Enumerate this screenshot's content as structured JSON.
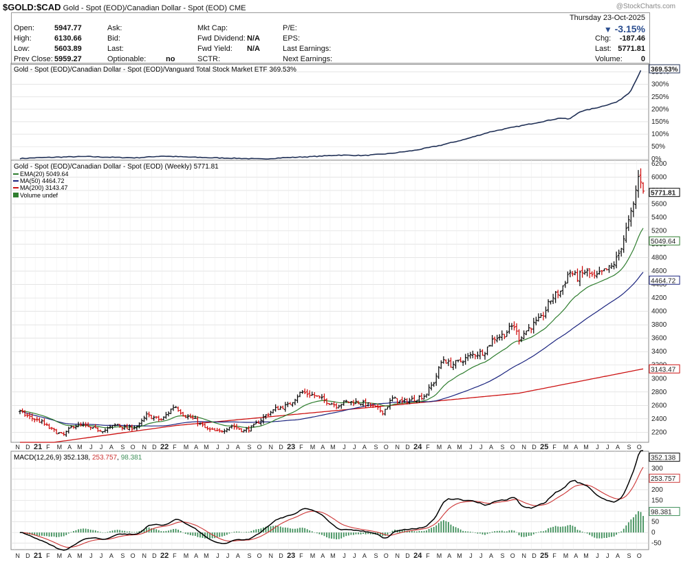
{
  "header": {
    "symbol": "$GOLD:$CAD",
    "name": "Gold - Spot (EOD)/Canadian Dollar - Spot (EOD)",
    "exchange": "CME",
    "credit": "@StockCharts.com"
  },
  "quote": {
    "date_line": "Thursday  23-Oct-2025",
    "pct_change": "-3.15%",
    "rows_left": [
      {
        "label": "Open:",
        "value": "5947.77"
      },
      {
        "label": "High:",
        "value": "6130.66"
      },
      {
        "label": "Low:",
        "value": "5603.89"
      },
      {
        "label": "Prev Close:",
        "value": "5959.27"
      }
    ],
    "rows_mid1": [
      {
        "label": "Ask:",
        "value": ""
      },
      {
        "label": "Bid:",
        "value": ""
      },
      {
        "label": "Last:",
        "value": ""
      },
      {
        "label": "Optionable:",
        "value": "no"
      }
    ],
    "rows_mid2": [
      {
        "label": "Mkt Cap:",
        "value": ""
      },
      {
        "label": "Fwd Dividend:",
        "value": "N/A"
      },
      {
        "label": "Fwd Yield:",
        "value": "N/A"
      },
      {
        "label": "SCTR:",
        "value": ""
      }
    ],
    "rows_mid3": [
      {
        "label": "P/E:"
      },
      {
        "label": "EPS:"
      },
      {
        "label": "Last Earnings:"
      },
      {
        "label": "Next Earnings:"
      }
    ],
    "rows_right": [
      {
        "label": "Chg:",
        "value": "-187.46"
      },
      {
        "label": "Last:",
        "value": "5771.81"
      },
      {
        "label": "Volume:",
        "value": "0"
      }
    ]
  },
  "colors": {
    "price_up": "#000000",
    "price_down": "#cc0000",
    "ema20": "#2e7d2e",
    "ma50": "#1a237e",
    "ma200": "#cc1111",
    "rel": "#1f2f55",
    "macd": "#000000",
    "signal": "#cc3333",
    "hist": "#3f8f5a",
    "grid": "#d4d4d4"
  },
  "chart_data": [
    {
      "type": "line",
      "legend": "Gold - Spot (EOD)/Canadian Dollar - Spot (EOD)/Vanguard Total Stock Market ETF 369.53%",
      "yticks": [
        "0%",
        "50%",
        "100%",
        "150%",
        "200%",
        "250%",
        "300%",
        "350%"
      ],
      "ylim": [
        -5,
        385
      ],
      "last_label": "369.53%",
      "x": [
        2020.88,
        2021.0,
        2021.2,
        2021.4,
        2021.6,
        2021.8,
        2022.0,
        2022.2,
        2022.4,
        2022.6,
        2022.8,
        2022.95,
        2023.2,
        2023.4,
        2023.6,
        2023.8,
        2024.0,
        2024.2,
        2024.4,
        2024.6,
        2024.8,
        2025.0,
        2025.15,
        2025.22,
        2025.3,
        2025.45,
        2025.6,
        2025.7,
        2025.78,
        2025.8
      ],
      "values": [
        2,
        5,
        8,
        10,
        7,
        5,
        12,
        8,
        5,
        3,
        0,
        5,
        10,
        16,
        14,
        22,
        35,
        55,
        80,
        110,
        130,
        150,
        165,
        160,
        190,
        208,
        230,
        270,
        352,
        369.53
      ]
    },
    {
      "type": "bar",
      "title": "Gold - Spot (EOD)/Canadian Dollar - Spot (EOD) (Weekly) 5771.81",
      "legend": [
        {
          "name": "EMA(20)",
          "value": "5049.64"
        },
        {
          "name": "MA(50)",
          "value": "4464.72"
        },
        {
          "name": "MA(200)",
          "value": "3143.47"
        },
        {
          "name": "Volume undef",
          "value": ""
        }
      ],
      "yticks": [
        "2200",
        "2400",
        "2600",
        "2800",
        "3000",
        "3200",
        "3400",
        "3600",
        "3800",
        "4000",
        "4200",
        "4400",
        "4600",
        "4800",
        "5000",
        "5200",
        "5400",
        "5600",
        "5800",
        "6000",
        "6200"
      ],
      "ylim": [
        2050,
        6250
      ],
      "value_labels": [
        "5771.81",
        "5049.64",
        "4464.72",
        "3143.47"
      ],
      "x_anchor": [
        2020.88,
        2020.95,
        2021.05,
        2021.12,
        2021.22,
        2021.3,
        2021.38,
        2021.45,
        2021.55,
        2021.65,
        2021.72,
        2021.82,
        2021.88,
        2022.0,
        2022.1,
        2022.18,
        2022.25,
        2022.35,
        2022.45,
        2022.55,
        2022.65,
        2022.72,
        2022.82,
        2022.9,
        2023.0,
        2023.1,
        2023.2,
        2023.28,
        2023.38,
        2023.45,
        2023.55,
        2023.65,
        2023.75,
        2023.82,
        2023.9,
        2024.0,
        2024.08,
        2024.15,
        2024.22,
        2024.28,
        2024.35,
        2024.45,
        2024.55,
        2024.62,
        2024.7,
        2024.78,
        2024.82,
        2024.9,
        2025.0,
        2025.08,
        2025.15,
        2025.22,
        2025.28,
        2025.35,
        2025.42,
        2025.5,
        2025.55,
        2025.6,
        2025.65,
        2025.7,
        2025.73,
        2025.76,
        2025.79,
        2025.81
      ],
      "close_anchor": [
        2500,
        2430,
        2350,
        2250,
        2150,
        2300,
        2300,
        2250,
        2230,
        2320,
        2250,
        2300,
        2450,
        2380,
        2600,
        2450,
        2400,
        2250,
        2200,
        2300,
        2220,
        2280,
        2450,
        2550,
        2600,
        2800,
        2750,
        2680,
        2600,
        2650,
        2650,
        2600,
        2500,
        2700,
        2650,
        2700,
        2750,
        2950,
        3300,
        3200,
        3250,
        3350,
        3400,
        3600,
        3650,
        3800,
        3600,
        3750,
        3900,
        4200,
        4300,
        4600,
        4500,
        4600,
        4500,
        4600,
        4650,
        4800,
        5100,
        5400,
        5600,
        6000,
        5960,
        5771.81
      ]
    },
    {
      "type": "line",
      "legend": "MACD(12,26,9) 352.138, 253.757, 98.381",
      "legend_parts": [
        "MACD(12,26,9) 352.138",
        "253.757",
        "98.381"
      ],
      "yticks": [
        "-50",
        "0",
        "50",
        "100",
        "150",
        "200",
        "250",
        "300"
      ],
      "ylim": [
        -80,
        380
      ],
      "last_labels": [
        "352.138",
        "253.757",
        "98.381"
      ]
    }
  ],
  "xaxis": {
    "labels": [
      {
        "t": 2020.84,
        "text": "N"
      },
      {
        "t": 2020.92,
        "text": "D"
      },
      {
        "t": 2021.0,
        "text": "21"
      },
      {
        "t": 2021.08,
        "text": "F"
      },
      {
        "t": 2021.17,
        "text": "M"
      },
      {
        "t": 2021.25,
        "text": "A"
      },
      {
        "t": 2021.33,
        "text": "M"
      },
      {
        "t": 2021.42,
        "text": "J"
      },
      {
        "t": 2021.5,
        "text": "J"
      },
      {
        "t": 2021.58,
        "text": "A"
      },
      {
        "t": 2021.67,
        "text": "S"
      },
      {
        "t": 2021.75,
        "text": "O"
      },
      {
        "t": 2021.84,
        "text": "N"
      },
      {
        "t": 2021.92,
        "text": "D"
      },
      {
        "t": 2022.0,
        "text": "22"
      },
      {
        "t": 2022.08,
        "text": "F"
      },
      {
        "t": 2022.17,
        "text": "M"
      },
      {
        "t": 2022.25,
        "text": "A"
      },
      {
        "t": 2022.33,
        "text": "M"
      },
      {
        "t": 2022.42,
        "text": "J"
      },
      {
        "t": 2022.5,
        "text": "J"
      },
      {
        "t": 2022.58,
        "text": "A"
      },
      {
        "t": 2022.67,
        "text": "S"
      },
      {
        "t": 2022.75,
        "text": "O"
      },
      {
        "t": 2022.84,
        "text": "N"
      },
      {
        "t": 2022.92,
        "text": "D"
      },
      {
        "t": 2023.0,
        "text": "23"
      },
      {
        "t": 2023.08,
        "text": "F"
      },
      {
        "t": 2023.17,
        "text": "M"
      },
      {
        "t": 2023.25,
        "text": "A"
      },
      {
        "t": 2023.33,
        "text": "M"
      },
      {
        "t": 2023.42,
        "text": "J"
      },
      {
        "t": 2023.5,
        "text": "J"
      },
      {
        "t": 2023.58,
        "text": "A"
      },
      {
        "t": 2023.67,
        "text": "S"
      },
      {
        "t": 2023.75,
        "text": "O"
      },
      {
        "t": 2023.84,
        "text": "N"
      },
      {
        "t": 2023.92,
        "text": "D"
      },
      {
        "t": 2024.0,
        "text": "24"
      },
      {
        "t": 2024.08,
        "text": "F"
      },
      {
        "t": 2024.17,
        "text": "M"
      },
      {
        "t": 2024.25,
        "text": "A"
      },
      {
        "t": 2024.33,
        "text": "M"
      },
      {
        "t": 2024.42,
        "text": "J"
      },
      {
        "t": 2024.5,
        "text": "J"
      },
      {
        "t": 2024.58,
        "text": "A"
      },
      {
        "t": 2024.67,
        "text": "S"
      },
      {
        "t": 2024.75,
        "text": "O"
      },
      {
        "t": 2024.84,
        "text": "N"
      },
      {
        "t": 2024.92,
        "text": "D"
      },
      {
        "t": 2025.0,
        "text": "25"
      },
      {
        "t": 2025.08,
        "text": "F"
      },
      {
        "t": 2025.17,
        "text": "M"
      },
      {
        "t": 2025.25,
        "text": "A"
      },
      {
        "t": 2025.33,
        "text": "M"
      },
      {
        "t": 2025.42,
        "text": "J"
      },
      {
        "t": 2025.5,
        "text": "J"
      },
      {
        "t": 2025.58,
        "text": "A"
      },
      {
        "t": 2025.67,
        "text": "S"
      },
      {
        "t": 2025.75,
        "text": "O"
      }
    ]
  }
}
